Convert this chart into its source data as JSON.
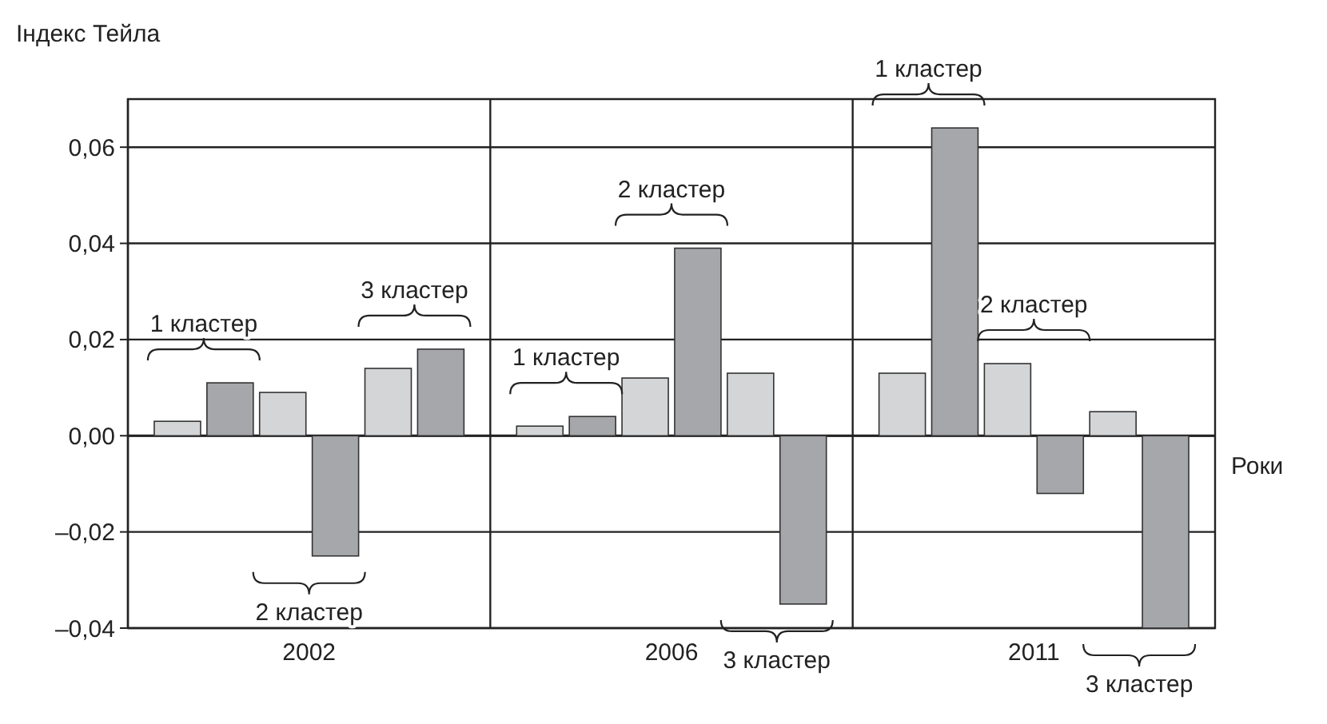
{
  "chart_data": {
    "type": "bar",
    "ylabel": "Індекс Тейла",
    "xlabel": "Роки",
    "categories": [
      "2002",
      "2006",
      "2011"
    ],
    "series": [
      {
        "color": "#d4d5d7",
        "values": [
          0.003,
          0.002,
          0.013
        ]
      },
      {
        "color": "#a6a7aa",
        "values": [
          0.011,
          0.004,
          0.064
        ]
      },
      {
        "color": "#d4d5d7",
        "values": [
          0.009,
          0.012,
          0.015
        ]
      },
      {
        "color": "#a6a7aa",
        "values": [
          -0.025,
          0.039,
          -0.012
        ]
      },
      {
        "color": "#d4d5d7",
        "values": [
          0.014,
          0.013,
          0.005
        ]
      },
      {
        "color": "#a6a7aa",
        "values": [
          0.018,
          -0.035,
          -0.04
        ]
      }
    ],
    "ylim": [
      -0.04,
      0.07
    ],
    "yticks": [
      {
        "value": -0.04,
        "label": "–0,04"
      },
      {
        "value": -0.02,
        "label": "–0,02"
      },
      {
        "value": 0,
        "label": "0,00"
      },
      {
        "value": 0.02,
        "label": "0,02"
      },
      {
        "value": 0.04,
        "label": "0,04"
      },
      {
        "value": 0.06,
        "label": "0,06"
      }
    ],
    "grid": "y",
    "annotations": [
      "1 кластер",
      "2 кластер",
      "3 кластер",
      "1 кластер",
      "2 кластер",
      "3 кластер",
      "1 кластер",
      "2 кластер",
      "3 кластер"
    ]
  }
}
